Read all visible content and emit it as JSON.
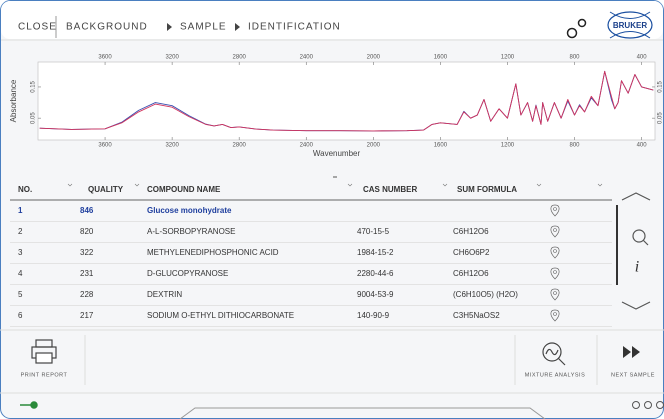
{
  "header": {
    "close": "CLOSE",
    "breadcrumb": [
      "BACKGROUND",
      "SAMPLE",
      "IDENTIFICATION"
    ]
  },
  "logo": "BRUKER",
  "chart_data": {
    "type": "line",
    "xlabel": "Wavenumber",
    "ylabel": "Absorbance",
    "x": [
      3990,
      3800,
      3600,
      3500,
      3400,
      3300,
      3200,
      3100,
      3000,
      2950,
      2900,
      2850,
      2800,
      2700,
      2600,
      2400,
      2200,
      2000,
      1800,
      1700,
      1650,
      1600,
      1500,
      1460,
      1420,
      1380,
      1340,
      1300,
      1250,
      1200,
      1150,
      1120,
      1080,
      1050,
      1030,
      1000,
      990,
      960,
      920,
      880,
      840,
      800,
      770,
      740,
      700,
      660,
      620,
      580,
      560,
      540,
      520,
      480,
      440,
      400,
      330
    ],
    "series": [
      {
        "color": "#3a4fb0",
        "values": [
          0.018,
          0.014,
          0.016,
          0.037,
          0.075,
          0.1,
          0.09,
          0.058,
          0.031,
          0.025,
          0.03,
          0.02,
          0.022,
          0.015,
          0.012,
          0.01,
          0.01,
          0.009,
          0.01,
          0.012,
          0.03,
          0.035,
          0.03,
          0.072,
          0.05,
          0.06,
          0.11,
          0.04,
          0.08,
          0.05,
          0.16,
          0.06,
          0.1,
          0.04,
          0.092,
          0.03,
          0.1,
          0.04,
          0.1,
          0.05,
          0.105,
          0.06,
          0.093,
          0.07,
          0.115,
          0.09,
          0.2,
          0.11,
          0.08,
          0.1,
          0.17,
          0.13,
          0.19,
          0.15,
          0.14
        ]
      },
      {
        "color": "#d2335c",
        "values": [
          0.018,
          0.014,
          0.016,
          0.035,
          0.07,
          0.095,
          0.085,
          0.055,
          0.03,
          0.025,
          0.03,
          0.02,
          0.022,
          0.015,
          0.012,
          0.01,
          0.01,
          0.009,
          0.01,
          0.012,
          0.03,
          0.035,
          0.03,
          0.07,
          0.05,
          0.06,
          0.11,
          0.04,
          0.08,
          0.05,
          0.16,
          0.06,
          0.1,
          0.04,
          0.09,
          0.03,
          0.1,
          0.04,
          0.1,
          0.05,
          0.11,
          0.06,
          0.09,
          0.07,
          0.12,
          0.09,
          0.2,
          0.12,
          0.08,
          0.1,
          0.17,
          0.13,
          0.19,
          0.15,
          0.14
        ]
      }
    ],
    "xlim": [
      4000,
      320
    ],
    "ylim": [
      -0.02,
      0.23
    ],
    "xticks": [
      3600,
      3200,
      2800,
      2400,
      2000,
      1600,
      1200,
      800,
      400
    ],
    "yticks": [
      0.05,
      0.15
    ]
  },
  "table": {
    "columns": [
      "NO.",
      "QUALITY",
      "COMPOUND NAME",
      "CAS NUMBER",
      "SUM FORMULA"
    ],
    "rows": [
      {
        "no": "1",
        "quality": "846",
        "name": "Glucose monohydrate"
      },
      {
        "no": "2",
        "quality": "820",
        "name": "A-L-SORBOPYRANOSE",
        "cas": "470-15-5",
        "formula": "C6H12O6"
      },
      {
        "no": "3",
        "quality": "322",
        "name": "METHYLENEDIPHOSPHONIC ACID",
        "cas": "1984-15-2",
        "formula": "CH6O6P2"
      },
      {
        "no": "4",
        "quality": "231",
        "name": "D-GLUCOPYRANOSE",
        "cas": "2280-44-6",
        "formula": "C6H12O6"
      },
      {
        "no": "5",
        "quality": "228",
        "name": "DEXTRIN",
        "cas": "9004-53-9",
        "formula": "(C6H10O5) (H2O)"
      },
      {
        "no": "6",
        "quality": "217",
        "name": "SODIUM O-ETHYL DITHIOCARBONATE",
        "cas": "140-90-9",
        "formula": "C3H5NaOS2"
      }
    ]
  },
  "toolbar": {
    "print": "PRINT REPORT",
    "mixture": "MIXTURE ANALYSIS",
    "next": "NEXT SAMPLE"
  }
}
